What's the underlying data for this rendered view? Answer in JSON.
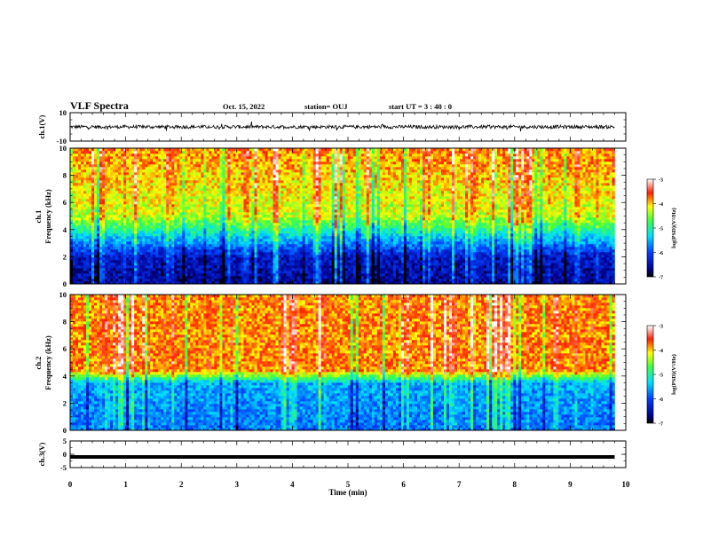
{
  "header": {
    "title": "VLF Spectra",
    "date": "Oct. 15, 2022",
    "station": "station= OUJ",
    "start": "start  UT =  3 : 40 : 0"
  },
  "chart_data": [
    {
      "type": "line",
      "panel": "ch1-waveform",
      "ylabel": "ch.1(V)",
      "ylim": [
        -10,
        10
      ],
      "yticks": [
        "10",
        "-10"
      ],
      "series": [
        {
          "mean": 0,
          "amplitude_typ": 1.5,
          "xlim": [
            0,
            9.8
          ]
        }
      ]
    },
    {
      "type": "heatmap",
      "panel": "ch1-spectrogram",
      "ylabel": [
        "ch.1",
        "Frequency (kHz)"
      ],
      "ylim": [
        0,
        10
      ],
      "yticks": [
        "0",
        "2",
        "4",
        "6",
        "8",
        "10"
      ],
      "colorbar": {
        "label": "log(PSD)(V²/Hz)",
        "range": [
          -7,
          -3
        ],
        "ticks": [
          "-3",
          "-4",
          "-5",
          "-6",
          "-7"
        ]
      },
      "profile": "low PSD (≈-6.5) below 2 kHz, transition 2–5 kHz, high PSD (≈-4) above 5 kHz with vertical impulsive streaks",
      "data_extent_min": 9.8
    },
    {
      "type": "heatmap",
      "panel": "ch2-spectrogram",
      "ylabel": [
        "ch.2",
        "Frequency (kHz)"
      ],
      "ylim": [
        0,
        10
      ],
      "yticks": [
        "0",
        "2",
        "4",
        "6",
        "8",
        "10"
      ],
      "colorbar": {
        "label": "log(PSD)(V²/Hz)",
        "range": [
          -7,
          -3
        ],
        "ticks": [
          "-3",
          "-4",
          "-5",
          "-6",
          "-7"
        ]
      },
      "profile": "moderate PSD (≈-5.5) below 3.5 kHz, high PSD (≈-3.5) above 4 kHz with vertical streaks",
      "data_extent_min": 9.8
    },
    {
      "type": "line",
      "panel": "ch3-waveform",
      "ylabel": "ch.3(V)",
      "ylim": [
        -5,
        5
      ],
      "yticks": [
        "5",
        "0",
        "-5"
      ],
      "series": [
        {
          "constant": -1,
          "xlim": [
            0,
            9.8
          ]
        }
      ]
    },
    {
      "type": "axis",
      "xlabel": "Time (min)",
      "xlim": [
        0,
        10
      ],
      "xticks": [
        "0",
        "1",
        "2",
        "3",
        "4",
        "5",
        "6",
        "7",
        "8",
        "9",
        "10"
      ]
    }
  ]
}
